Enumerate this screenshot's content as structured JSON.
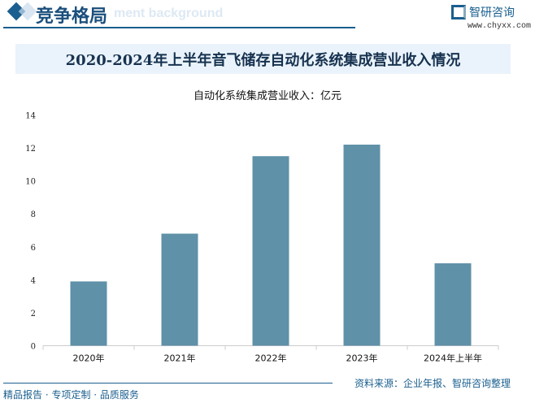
{
  "header": {
    "title": "竞争格局",
    "bg_text": "ment background",
    "logo_text": "智研咨询",
    "logo_url": "www.chyxx.com"
  },
  "footer": {
    "left": "精品报告 · 专项定制 · 品质服务",
    "source": "资料来源：企业年报、智研咨询整理"
  },
  "colors": {
    "bar": "#5f91a8",
    "accent": "#1a5f8f"
  },
  "chart_data": {
    "type": "bar",
    "title": "2020-2024年上半年音飞储存自动化系统集成营业收入情况",
    "subtitle": "自动化系统集成营业收入：亿元",
    "categories": [
      "2020年",
      "2021年",
      "2022年",
      "2023年",
      "2024年上半年"
    ],
    "values": [
      3.9,
      6.8,
      11.5,
      12.2,
      5.0
    ],
    "ylim": [
      0,
      14
    ],
    "yticks": [
      "0",
      "2",
      "4",
      "6",
      "8",
      "10",
      "12",
      "14"
    ],
    "grid": false,
    "xlabel": "",
    "ylabel": ""
  }
}
